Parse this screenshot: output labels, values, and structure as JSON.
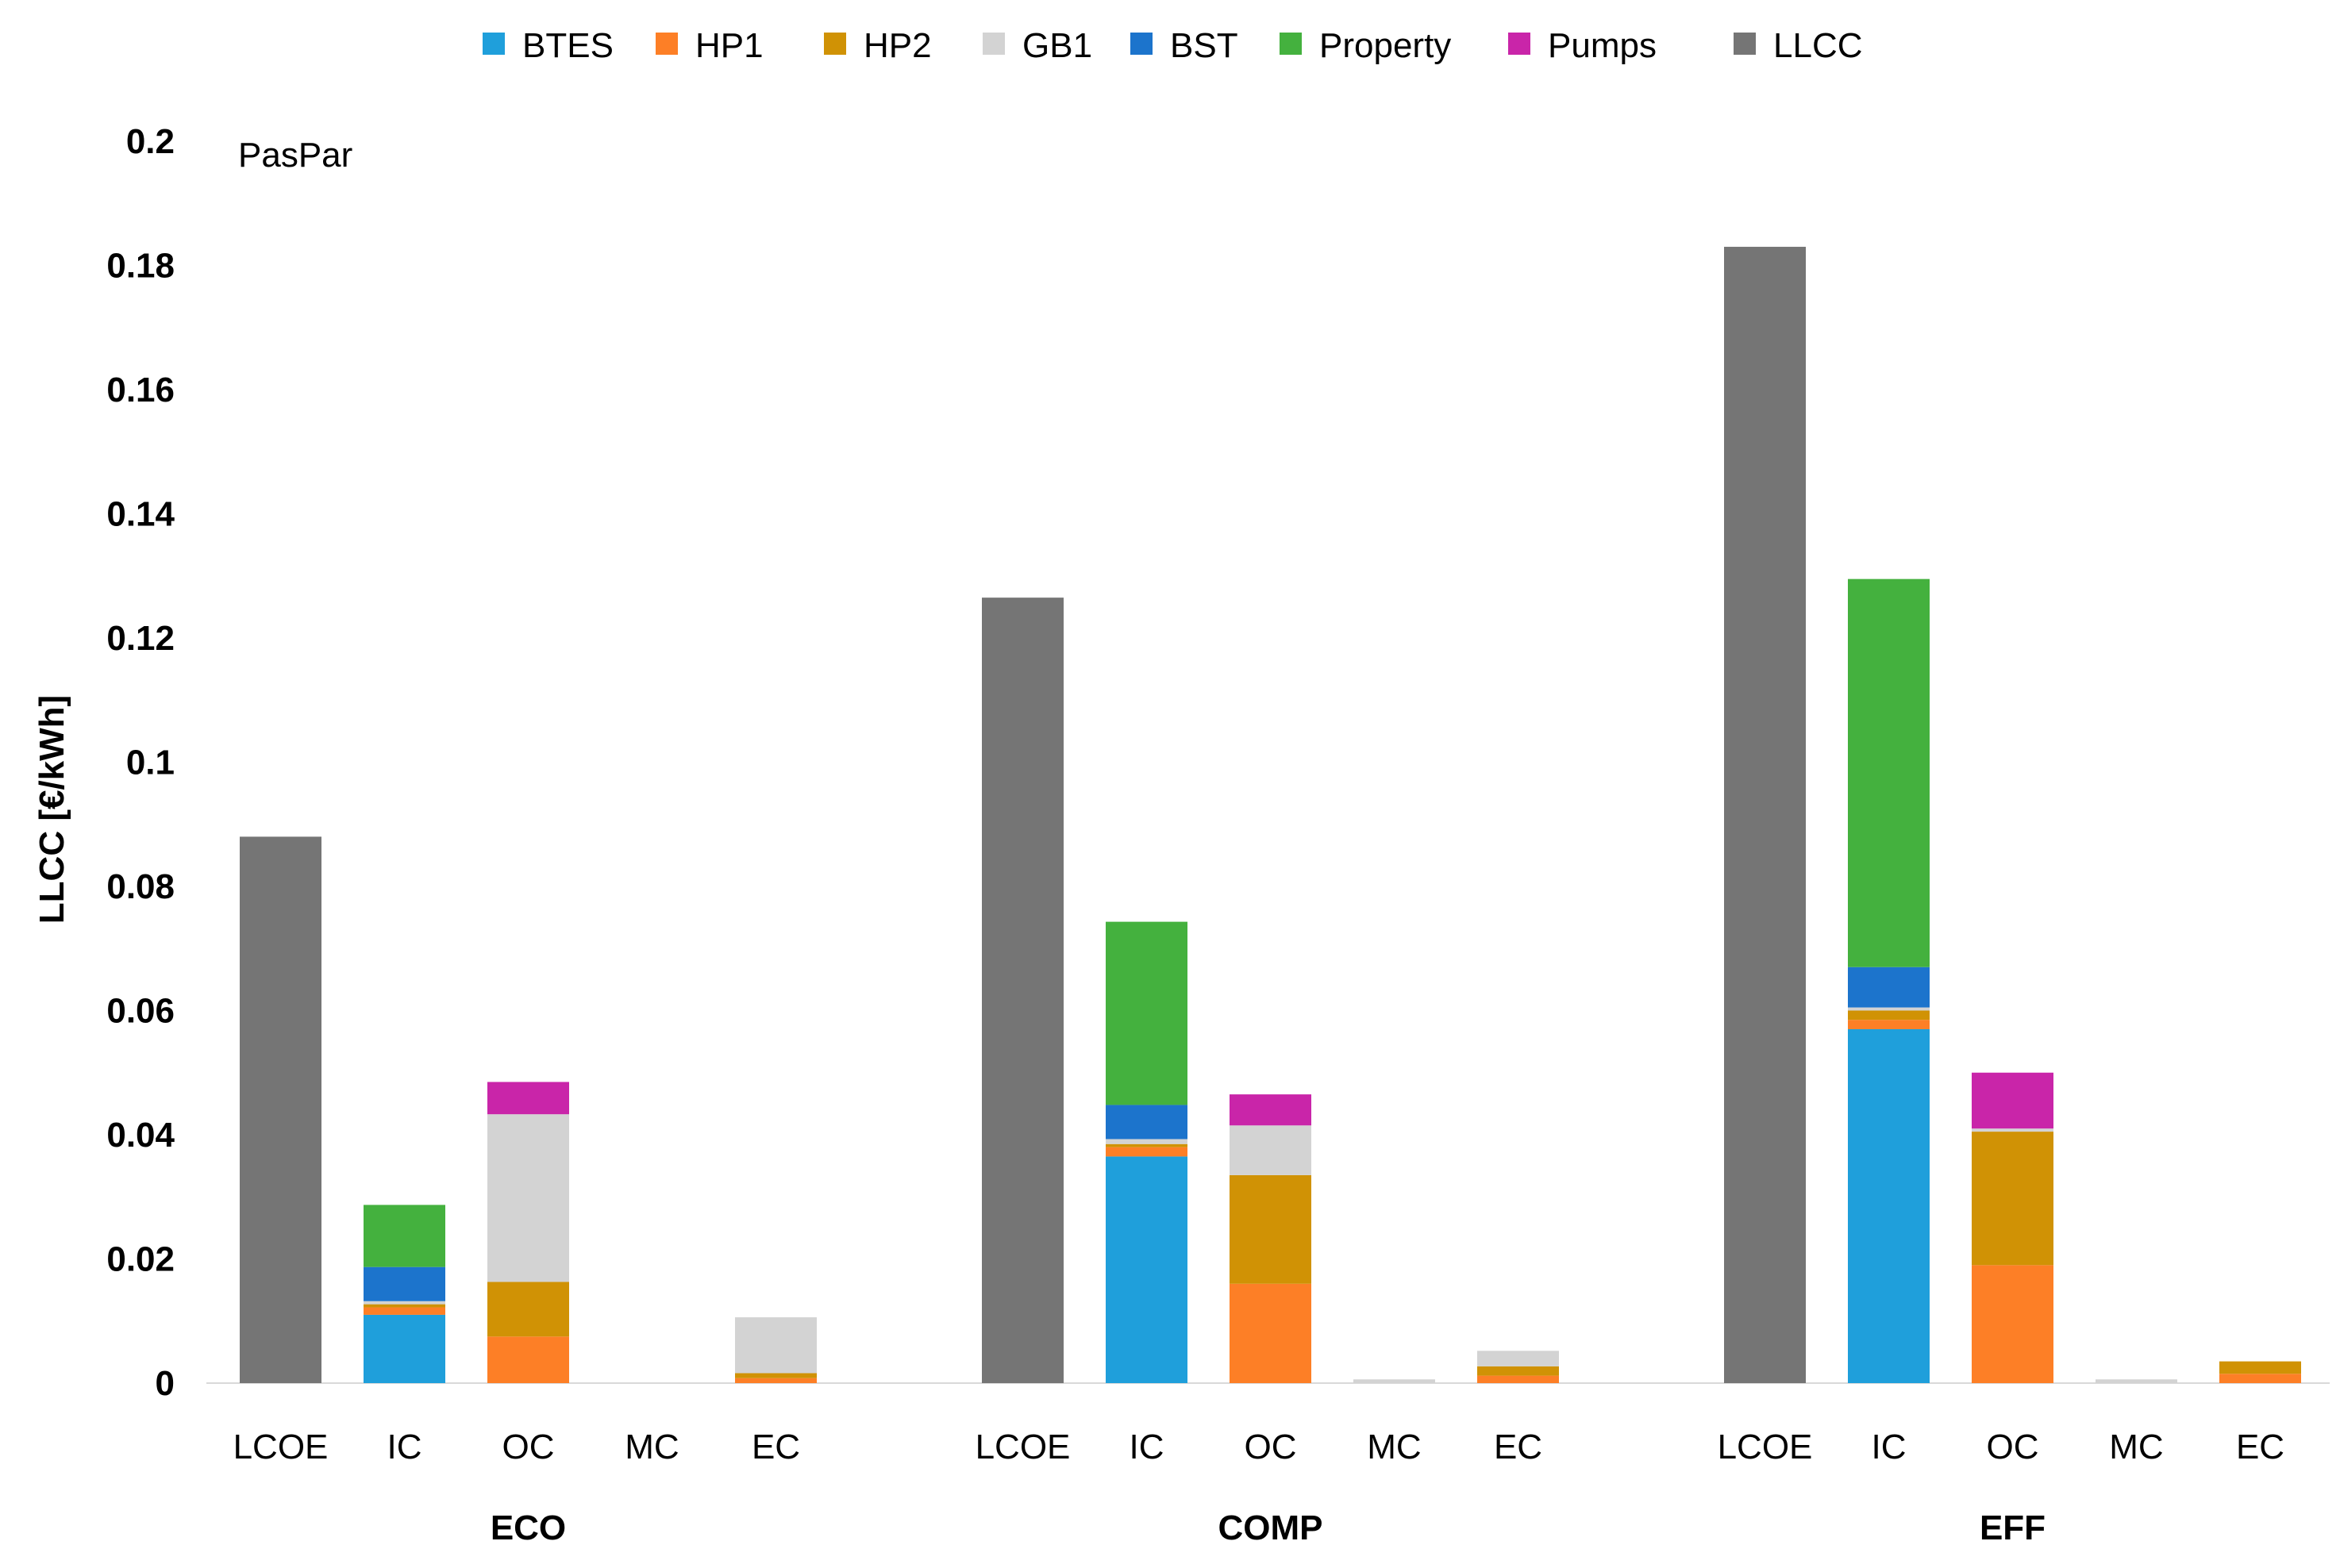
{
  "chart_data": {
    "type": "bar",
    "stacked": true,
    "title": "",
    "annotation": "PasPar",
    "ylabel": "LLCC [€/kWh]",
    "xlabel": "",
    "ylim": [
      0,
      0.2
    ],
    "yticks": [
      0,
      0.02,
      0.04,
      0.06,
      0.08,
      0.1,
      0.12,
      0.14,
      0.16,
      0.18,
      0.2
    ],
    "ytick_labels": [
      "0",
      "0.02",
      "0.04",
      "0.06",
      "0.08",
      "0.1",
      "0.12",
      "0.14",
      "0.16",
      "0.18",
      "0.2"
    ],
    "grid": false,
    "legend_position": "top",
    "groups": [
      "ECO",
      "COMP",
      "EFF"
    ],
    "categories": [
      "LCOE",
      "IC",
      "OC",
      "MC",
      "EC"
    ],
    "series": [
      {
        "name": "BTES",
        "color": "#1f9fdb",
        "values": [
          [
            0,
            0.011,
            0,
            0,
            0
          ],
          [
            0,
            0.0365,
            0,
            0,
            0
          ],
          [
            0,
            0.057,
            0,
            0,
            0
          ]
        ]
      },
      {
        "name": "HP1",
        "color": "#fd7f26",
        "values": [
          [
            0,
            0.0012,
            0.0075,
            0,
            0.0008
          ],
          [
            0,
            0.0015,
            0.016,
            0,
            0.0012
          ],
          [
            0,
            0.0015,
            0.019,
            0,
            0.0015
          ]
        ]
      },
      {
        "name": "HP2",
        "color": "#d09205",
        "values": [
          [
            0,
            0.0005,
            0.0088,
            0,
            0.0008
          ],
          [
            0,
            0.0005,
            0.0175,
            0,
            0.0015
          ],
          [
            0,
            0.0015,
            0.0215,
            0,
            0.002
          ]
        ]
      },
      {
        "name": "GB1",
        "color": "#d3d3d3",
        "values": [
          [
            0,
            0.0005,
            0.027,
            0,
            0.009
          ],
          [
            0,
            0.0008,
            0.008,
            0.0006,
            0.0025
          ],
          [
            0,
            0.0005,
            0.0005,
            0.0006,
            0
          ]
        ]
      },
      {
        "name": "BST",
        "color": "#1c74cc",
        "values": [
          [
            0,
            0.0055,
            0,
            0,
            0
          ],
          [
            0,
            0.0055,
            0,
            0,
            0
          ],
          [
            0,
            0.0065,
            0,
            0,
            0
          ]
        ]
      },
      {
        "name": "Property",
        "color": "#44b13e",
        "values": [
          [
            0,
            0.01,
            0,
            0,
            0
          ],
          [
            0,
            0.0295,
            0,
            0,
            0
          ],
          [
            0,
            0.0625,
            0,
            0,
            0
          ]
        ]
      },
      {
        "name": "Pumps",
        "color": "#c925a9",
        "values": [
          [
            0,
            0,
            0.0052,
            0,
            0
          ],
          [
            0,
            0,
            0.005,
            0,
            0
          ],
          [
            0,
            0,
            0.009,
            0,
            0
          ]
        ]
      },
      {
        "name": "LLCC",
        "color": "#757575",
        "values": [
          [
            0.088,
            0,
            0,
            0,
            0
          ],
          [
            0.1265,
            0,
            0,
            0,
            0
          ],
          [
            0.183,
            0,
            0,
            0,
            0
          ]
        ]
      }
    ]
  }
}
